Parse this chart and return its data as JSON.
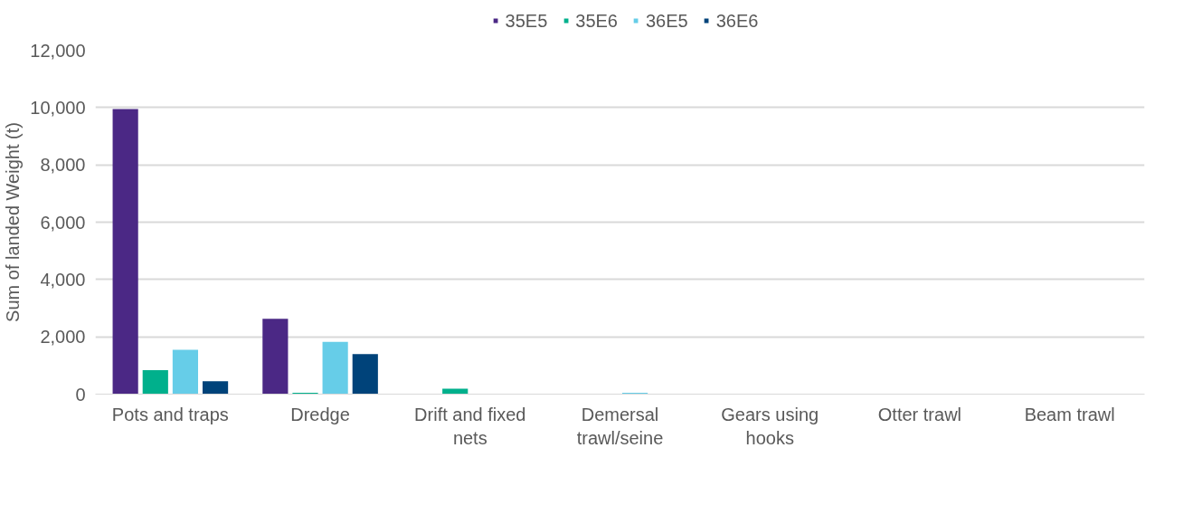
{
  "chart_data": {
    "type": "bar",
    "ylabel": "Sum of landed Weight (t)",
    "categories": [
      "Pots and traps",
      "Dredge",
      "Drift and fixed nets",
      "Demersal trawl/seine",
      "Gears using hooks",
      "Otter trawl",
      "Beam trawl"
    ],
    "series": [
      {
        "name": "35E5",
        "color": "#4b2885",
        "values": [
          9950,
          2630,
          0,
          0,
          0,
          0,
          0
        ]
      },
      {
        "name": "35E6",
        "color": "#00b08c",
        "values": [
          840,
          50,
          190,
          0,
          0,
          0,
          0
        ]
      },
      {
        "name": "36E5",
        "color": "#66cde8",
        "values": [
          1550,
          1820,
          0,
          50,
          0,
          0,
          0
        ]
      },
      {
        "name": "36E6",
        "color": "#00437a",
        "values": [
          450,
          1400,
          0,
          0,
          0,
          0,
          0
        ]
      }
    ],
    "ylim": [
      0,
      12000
    ],
    "yticks": [
      {
        "value": 0,
        "label": "0"
      },
      {
        "value": 2000,
        "label": "2,000"
      },
      {
        "value": 4000,
        "label": "4,000"
      },
      {
        "value": 6000,
        "label": "6,000"
      },
      {
        "value": 8000,
        "label": "8,000"
      },
      {
        "value": 10000,
        "label": "10,000"
      },
      {
        "value": 12000,
        "label": "12,000"
      }
    ],
    "grid": "y",
    "legend": "top"
  }
}
